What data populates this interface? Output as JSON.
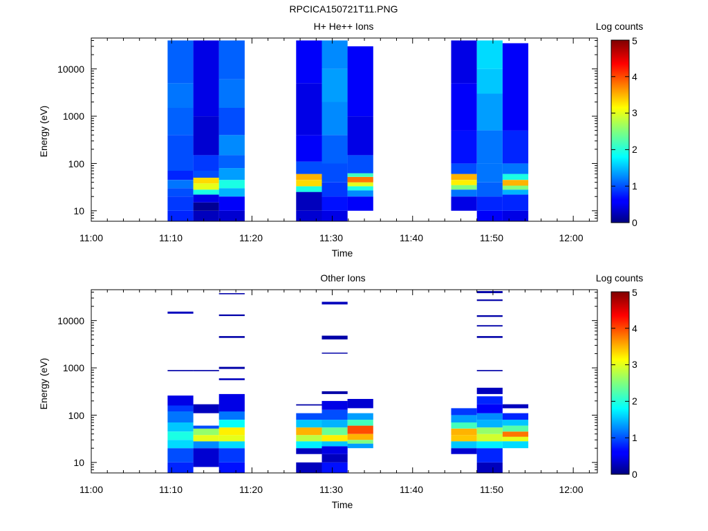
{
  "figure_title": "RPCICA150721T11.PNG",
  "panels": [
    {
      "title": "H+ He++ Ions",
      "ylabel": "Energy (eV)",
      "xlabel": "Time",
      "colorbar_label": "Log counts",
      "colorbar_ticks": [
        "0",
        "1",
        "2",
        "3",
        "4",
        "5"
      ],
      "yticks": [
        "10",
        "100",
        "1000",
        "10000"
      ],
      "xticks": [
        "11:00",
        "11:10",
        "11:20",
        "11:30",
        "11:40",
        "11:50",
        "12:00"
      ]
    },
    {
      "title": "Other Ions",
      "ylabel": "Energy (eV)",
      "xlabel": "Time",
      "colorbar_label": "Log counts",
      "colorbar_ticks": [
        "0",
        "1",
        "2",
        "3",
        "4",
        "5"
      ],
      "yticks": [
        "10",
        "100",
        "1000",
        "10000"
      ],
      "xticks": [
        "11:00",
        "11:10",
        "11:20",
        "11:30",
        "11:40",
        "11:50",
        "12:00"
      ]
    }
  ],
  "chart_data": [
    {
      "type": "heatmap",
      "title": "H+ He++ Ions",
      "xlabel": "Time",
      "ylabel": "Energy (eV)",
      "x_range": [
        "11:00",
        "12:03"
      ],
      "y_range": [
        6,
        45000
      ],
      "y_scale": "log",
      "colorbar": {
        "label": "Log counts",
        "range": [
          0,
          5
        ],
        "colormap": "jet"
      },
      "columns": [
        {
          "t_start": "11:09.5",
          "t_end": "11:12.7",
          "cells": [
            [
              6,
              10,
              0.8
            ],
            [
              10,
              20,
              0.9
            ],
            [
              20,
              30,
              1.0
            ],
            [
              30,
              45,
              1.2
            ],
            [
              45,
              70,
              0.8
            ],
            [
              70,
              120,
              1.0
            ],
            [
              120,
              400,
              1.0
            ],
            [
              400,
              1500,
              1.1
            ],
            [
              1500,
              5000,
              1.2
            ],
            [
              5000,
              40000,
              1.1
            ]
          ]
        },
        {
          "t_start": "11:12.7",
          "t_end": "11:15.9",
          "cells": [
            [
              6,
              10,
              0.3
            ],
            [
              10,
              15,
              0.1
            ],
            [
              15,
              22,
              0.5
            ],
            [
              22,
              28,
              2.0
            ],
            [
              28,
              38,
              3.0
            ],
            [
              38,
              50,
              3.3
            ],
            [
              50,
              70,
              1.0
            ],
            [
              70,
              150,
              0.9
            ],
            [
              150,
              1000,
              0.4
            ],
            [
              1000,
              40000,
              0.5
            ]
          ]
        },
        {
          "t_start": "11:15.9",
          "t_end": "11:19.1",
          "cells": [
            [
              6,
              10,
              0.4
            ],
            [
              10,
              20,
              0.6
            ],
            [
              20,
              30,
              1.5
            ],
            [
              30,
              45,
              2.0
            ],
            [
              45,
              80,
              1.4
            ],
            [
              80,
              150,
              1.1
            ],
            [
              150,
              400,
              1.3
            ],
            [
              400,
              1500,
              1.0
            ],
            [
              1500,
              6000,
              1.2
            ],
            [
              6000,
              40000,
              1.1
            ]
          ]
        },
        {
          "t_start": "11:25.5",
          "t_end": "11:28.7",
          "cells": [
            [
              6,
              10,
              0.4
            ],
            [
              10,
              25,
              0.3
            ],
            [
              25,
              33,
              2.0
            ],
            [
              33,
              45,
              3.3
            ],
            [
              45,
              60,
              3.5
            ],
            [
              60,
              110,
              1.0
            ],
            [
              110,
              400,
              0.6
            ],
            [
              400,
              5000,
              0.5
            ],
            [
              5000,
              40000,
              0.6
            ]
          ]
        },
        {
          "t_start": "11:28.7",
          "t_end": "11:31.9",
          "cells": [
            [
              6,
              10,
              0.5
            ],
            [
              10,
              20,
              0.7
            ],
            [
              20,
              40,
              0.9
            ],
            [
              40,
              100,
              1.0
            ],
            [
              100,
              400,
              1.1
            ],
            [
              400,
              2000,
              1.3
            ],
            [
              2000,
              10000,
              1.4
            ],
            [
              10000,
              40000,
              1.3
            ]
          ]
        },
        {
          "t_start": "11:31.9",
          "t_end": "11:35.1",
          "cells": [
            [
              10,
              20,
              0.6
            ],
            [
              20,
              27,
              1.3
            ],
            [
              27,
              33,
              2.0
            ],
            [
              33,
              40,
              3.0
            ],
            [
              40,
              52,
              3.8
            ],
            [
              52,
              62,
              2.2
            ],
            [
              62,
              150,
              1.0
            ],
            [
              150,
              1000,
              0.5
            ],
            [
              1000,
              30000,
              0.6
            ]
          ]
        },
        {
          "t_start": "11:44.8",
          "t_end": "11:48.0",
          "cells": [
            [
              10,
              20,
              0.5
            ],
            [
              20,
              28,
              1.2
            ],
            [
              28,
              35,
              2.5
            ],
            [
              35,
              45,
              3.2
            ],
            [
              45,
              60,
              3.5
            ],
            [
              60,
              100,
              1.0
            ],
            [
              100,
              500,
              0.7
            ],
            [
              500,
              5000,
              0.6
            ],
            [
              5000,
              40000,
              0.5
            ]
          ]
        },
        {
          "t_start": "11:48.0",
          "t_end": "11:51.2",
          "cells": [
            [
              6,
              10,
              0.6
            ],
            [
              10,
              20,
              0.8
            ],
            [
              20,
              40,
              1.1
            ],
            [
              40,
              100,
              1.2
            ],
            [
              100,
              500,
              1.2
            ],
            [
              500,
              3000,
              1.4
            ],
            [
              3000,
              10000,
              1.6
            ],
            [
              10000,
              40000,
              1.7
            ]
          ]
        },
        {
          "t_start": "11:51.2",
          "t_end": "11:54.4",
          "cells": [
            [
              6,
              10,
              0.5
            ],
            [
              10,
              22,
              0.8
            ],
            [
              22,
              28,
              1.5
            ],
            [
              28,
              34,
              2.5
            ],
            [
              34,
              45,
              3.5
            ],
            [
              45,
              60,
              2.0
            ],
            [
              60,
              100,
              1.2
            ],
            [
              100,
              500,
              0.8
            ],
            [
              500,
              35000,
              0.6
            ]
          ]
        }
      ]
    },
    {
      "type": "heatmap",
      "title": "Other Ions",
      "xlabel": "Time",
      "ylabel": "Energy (eV)",
      "x_range": [
        "11:00",
        "12:03"
      ],
      "y_range": [
        6,
        45000
      ],
      "y_scale": "log",
      "colorbar": {
        "label": "Log counts",
        "range": [
          0,
          5
        ],
        "colormap": "jet"
      },
      "columns": [
        {
          "t_start": "11:09.5",
          "t_end": "11:12.7",
          "cells": [
            [
              6,
              10,
              0.8
            ],
            [
              10,
              20,
              1.0
            ],
            [
              20,
              30,
              1.7
            ],
            [
              30,
              45,
              2.0
            ],
            [
              45,
              70,
              1.6
            ],
            [
              70,
              120,
              1.2
            ],
            [
              120,
              160,
              0.9
            ],
            [
              160,
              260,
              0.5
            ],
            [
              850,
              900,
              0.2
            ],
            [
              14000,
              15500,
              0.3
            ]
          ]
        },
        {
          "t_start": "11:12.7",
          "t_end": "11:15.9",
          "cells": [
            [
              8,
              20,
              0.4
            ],
            [
              20,
              28,
              1.3
            ],
            [
              28,
              38,
              3.0
            ],
            [
              38,
              52,
              2.6
            ],
            [
              52,
              60,
              1.0
            ],
            [
              110,
              170,
              0.3
            ],
            [
              850,
              900,
              0.2
            ]
          ]
        },
        {
          "t_start": "11:15.9",
          "t_end": "11:19.1",
          "cells": [
            [
              6,
              10,
              0.7
            ],
            [
              10,
              20,
              0.9
            ],
            [
              20,
              28,
              1.7
            ],
            [
              28,
              38,
              3.0
            ],
            [
              38,
              55,
              3.2
            ],
            [
              55,
              80,
              1.9
            ],
            [
              80,
              120,
              1.2
            ],
            [
              120,
              280,
              0.5
            ],
            [
              550,
              600,
              0.3
            ],
            [
              950,
              1050,
              0.2
            ],
            [
              4300,
              4700,
              0.2
            ],
            [
              12500,
              13500,
              0.2
            ],
            [
              36000,
              38000,
              0.2
            ]
          ]
        },
        {
          "t_start": "11:25.5",
          "t_end": "11:28.7",
          "cells": [
            [
              6,
              10,
              0.3
            ],
            [
              15,
              20,
              0.3
            ],
            [
              20,
              28,
              1.8
            ],
            [
              28,
              38,
              2.8
            ],
            [
              38,
              55,
              3.5
            ],
            [
              55,
              80,
              1.6
            ],
            [
              80,
              110,
              1.0
            ],
            [
              160,
              170,
              0.2
            ]
          ]
        },
        {
          "t_start": "11:28.7",
          "t_end": "11:31.9",
          "cells": [
            [
              6,
              10,
              0.7
            ],
            [
              10,
              15,
              0.3
            ],
            [
              15,
              22,
              0.5
            ],
            [
              22,
              28,
              1.6
            ],
            [
              28,
              38,
              3.2
            ],
            [
              38,
              55,
              2.4
            ],
            [
              55,
              80,
              1.5
            ],
            [
              80,
              130,
              1.0
            ],
            [
              130,
              200,
              0.5
            ],
            [
              280,
              320,
              0.2
            ],
            [
              2000,
              2100,
              0.2
            ],
            [
              4000,
              4800,
              0.2
            ],
            [
              22000,
              25000,
              0.3
            ]
          ]
        },
        {
          "t_start": "11:31.9",
          "t_end": "11:35.1",
          "cells": [
            [
              20,
              25,
              1.4
            ],
            [
              25,
              30,
              2.5
            ],
            [
              30,
              40,
              3.5
            ],
            [
              40,
              60,
              4.0
            ],
            [
              60,
              80,
              2.2
            ],
            [
              80,
              110,
              1.4
            ],
            [
              140,
              220,
              0.4
            ]
          ]
        },
        {
          "t_start": "11:44.8",
          "t_end": "11:48.0",
          "cells": [
            [
              15,
              20,
              0.4
            ],
            [
              20,
              28,
              1.6
            ],
            [
              28,
              38,
              3.4
            ],
            [
              38,
              52,
              3.5
            ],
            [
              52,
              70,
              2.2
            ],
            [
              70,
              100,
              1.4
            ],
            [
              100,
              140,
              0.9
            ]
          ]
        },
        {
          "t_start": "11:48.0",
          "t_end": "11:51.2",
          "cells": [
            [
              6,
              10,
              0.3
            ],
            [
              10,
              20,
              0.8
            ],
            [
              20,
              28,
              1.8
            ],
            [
              28,
              40,
              2.9
            ],
            [
              40,
              55,
              2.6
            ],
            [
              55,
              80,
              1.5
            ],
            [
              80,
              110,
              1.3
            ],
            [
              110,
              170,
              0.6
            ],
            [
              170,
              250,
              0.8
            ],
            [
              280,
              380,
              0.3
            ],
            [
              850,
              900,
              0.2
            ],
            [
              4300,
              4700,
              0.2
            ],
            [
              7500,
              8000,
              0.2
            ],
            [
              12000,
              13000,
              0.2
            ],
            [
              26000,
              28000,
              0.2
            ],
            [
              38000,
              42000,
              0.2
            ]
          ]
        },
        {
          "t_start": "11:51.2",
          "t_end": "11:54.4",
          "cells": [
            [
              20,
              28,
              1.7
            ],
            [
              28,
              35,
              3.0
            ],
            [
              35,
              45,
              3.8
            ],
            [
              45,
              60,
              2.3
            ],
            [
              60,
              80,
              1.6
            ],
            [
              80,
              110,
              0.8
            ],
            [
              140,
              170,
              0.3
            ]
          ]
        }
      ]
    }
  ]
}
